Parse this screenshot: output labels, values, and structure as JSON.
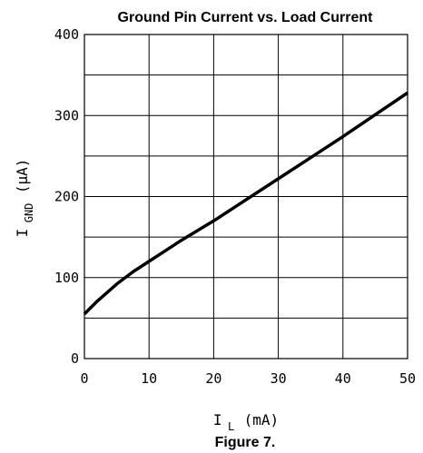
{
  "chart_data": {
    "type": "line",
    "title": "Ground Pin Current vs. Load Current",
    "caption": "Figure 7.",
    "xlabel": {
      "main": "I",
      "sub": "L",
      "unit": "(mA)"
    },
    "ylabel": {
      "main": "I",
      "sub": "GND",
      "unit": "(μA)"
    },
    "xlim": [
      0,
      50
    ],
    "ylim": [
      0,
      400
    ],
    "xticks": [
      0,
      10,
      20,
      30,
      40,
      50
    ],
    "yticks": [
      0,
      100,
      200,
      300,
      400
    ],
    "x_grid_step": 10,
    "y_grid_step": 50,
    "grid": true,
    "series": [
      {
        "color": "#000000",
        "x": [
          0,
          1,
          2,
          3,
          5,
          7.5,
          10,
          12.5,
          15,
          17.5,
          20,
          25,
          30,
          35,
          40,
          45,
          50
        ],
        "y": [
          55,
          63,
          71,
          78,
          92,
          107,
          120,
          133,
          146,
          158,
          170,
          196,
          222,
          248,
          274,
          301,
          328
        ]
      }
    ]
  }
}
